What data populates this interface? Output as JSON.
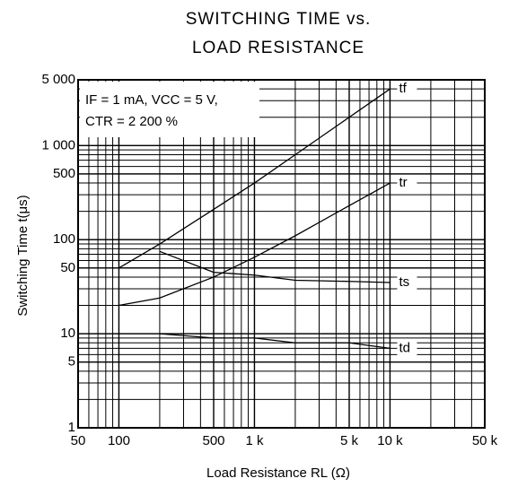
{
  "chart_data": {
    "type": "line",
    "title": [
      "SWITCHING TIME vs.",
      "LOAD RESISTANCE"
    ],
    "x_label": "Load Resistance  RL (Ω)",
    "y_label": "Switching Time  t(μs)",
    "annotation": [
      "IF = 1 mA, VCC = 5 V,",
      "CTR = 2 200 %"
    ],
    "x": [
      100,
      200,
      500,
      1000,
      2000,
      5000,
      10000
    ],
    "series": [
      {
        "name": "tf",
        "color": "#000000",
        "values": [
          50,
          90,
          210,
          400,
          800,
          2000,
          4000
        ]
      },
      {
        "name": "tr",
        "color": "#000000",
        "values": [
          20,
          24,
          40,
          65,
          110,
          230,
          400
        ]
      },
      {
        "name": "ts",
        "color": "#000000",
        "values": [
          null,
          75,
          45,
          42,
          37,
          36,
          35
        ]
      },
      {
        "name": "td",
        "color": "#000000",
        "values": [
          null,
          10,
          9,
          9,
          8,
          8,
          7
        ]
      }
    ],
    "xlim": [
      50,
      50000
    ],
    "ylim": [
      1,
      5000
    ],
    "log_x": true,
    "log_y": true,
    "grid": true,
    "xticks": [
      50,
      100,
      500,
      {
        "value": 1000,
        "label": "1 k"
      },
      {
        "value": 5000,
        "label": "5 k"
      },
      {
        "value": 10000,
        "label": "10 k"
      },
      {
        "value": 50000,
        "label": "50 k"
      }
    ],
    "yticks": [
      1,
      5,
      10,
      50,
      100,
      500,
      {
        "value": 1000,
        "label": "1 000"
      },
      {
        "value": 5000,
        "label": "5 000"
      }
    ]
  }
}
